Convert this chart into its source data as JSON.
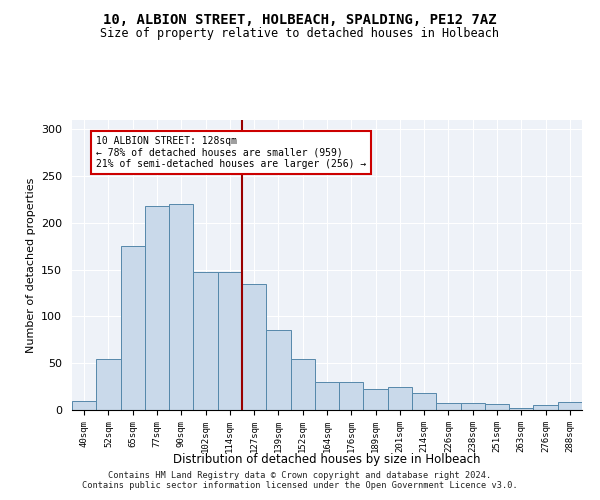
{
  "title": "10, ALBION STREET, HOLBEACH, SPALDING, PE12 7AZ",
  "subtitle": "Size of property relative to detached houses in Holbeach",
  "xlabel": "Distribution of detached houses by size in Holbeach",
  "ylabel": "Number of detached properties",
  "bar_color": "#c9d9ea",
  "bar_edge_color": "#5588aa",
  "background_color": "#eef2f8",
  "categories": [
    "40sqm",
    "52sqm",
    "65sqm",
    "77sqm",
    "90sqm",
    "102sqm",
    "114sqm",
    "127sqm",
    "139sqm",
    "152sqm",
    "164sqm",
    "176sqm",
    "189sqm",
    "201sqm",
    "214sqm",
    "226sqm",
    "238sqm",
    "251sqm",
    "263sqm",
    "276sqm",
    "288sqm"
  ],
  "values": [
    10,
    55,
    175,
    218,
    220,
    147,
    147,
    135,
    85,
    55,
    30,
    30,
    22,
    25,
    18,
    8,
    8,
    6,
    2,
    5,
    9
  ],
  "property_label": "10 ALBION STREET: 128sqm",
  "annotation_line1": "← 78% of detached houses are smaller (959)",
  "annotation_line2": "21% of semi-detached houses are larger (256) →",
  "vline_index": 7,
  "vline_color": "#990000",
  "annotation_box_color": "#ffffff",
  "annotation_box_edge": "#cc0000",
  "footer1": "Contains HM Land Registry data © Crown copyright and database right 2024.",
  "footer2": "Contains public sector information licensed under the Open Government Licence v3.0.",
  "ylim": [
    0,
    310
  ],
  "yticks": [
    0,
    50,
    100,
    150,
    200,
    250,
    300
  ]
}
